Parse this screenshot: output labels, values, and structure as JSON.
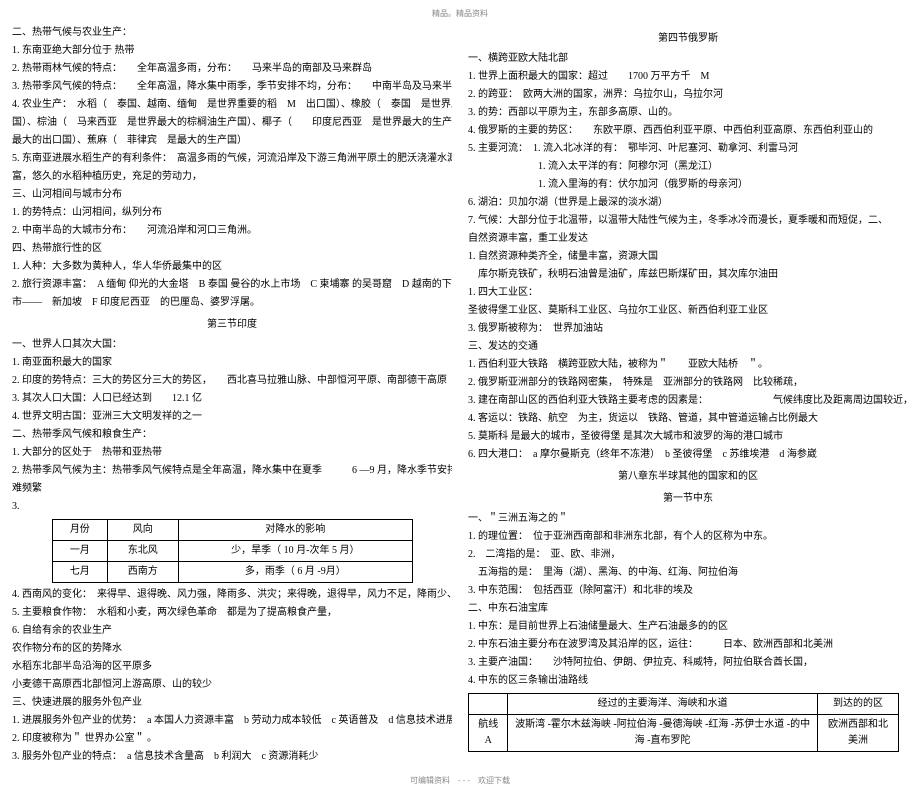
{
  "header": "精品。精品资料",
  "footer": "可编辑资料　- - -　欢迎下载",
  "left": {
    "s2_head": "二、热带气候与农业生产：",
    "s2_l1": "1. 东南亚绝大部分位于 热带",
    "s2_l2": "2. 热带雨林气候的特点：　　全年高温多雨，分布：　　马来半岛的南部及马来群岛",
    "s2_l3": "3. 热带季风气候的特点：　　全年高温，降水集中雨季，季节安排不均，分布：　　中南半岛及马来半岛北部",
    "s2_l4": "4. 农业生产：　水稻（　泰国、越南、缅甸　是世界重要的稻　M　出口国）、橡胶（　泰国　是世界上最大的橡胶生产",
    "s2_l4b": "国）、棕油（　马来西亚　是世界最大的棕榈油生产国）、椰子（　　印度尼西亚　是世界最大的生产国，菲律宾　是",
    "s2_l4c": "最大的出口国）、蕉麻（　菲律宾　是最大的生产国）",
    "s2_l5": "5. 东南亚进展水稻生产的有利条件：　高温多雨的气候，河流沿岸及下游三角洲平原土的肥沃浇灌水源丰",
    "s2_l5b": "富，悠久的水稻种植历史，充足的劳动力，",
    "s3_head": "三、山河相间与城市分布",
    "s3_l1": "1. 的势特点：山河相间，纵列分布",
    "s3_l2": "2. 中南半岛的大城市分布：　　河流沿岸和河口三角洲。",
    "s4_head": "四、热带旅行性的区",
    "s4_l1": "1. 人种：大多数为黄种人，华人华侨最集中的区",
    "s4_l2": "2. 旅行资源丰富：　A 缅甸 仰光的大金塔　B 泰国 曼谷的水上市场　C 柬埔寨 的吴哥窟　D 越南的下龙湾　E 花园城",
    "s4_l2b": "市——　新加坡　F 印度尼西亚　的巴厘岛、婆罗浮屠。",
    "sec3_title": "第三节印度",
    "p1_head": "一、世界人口其次大国：",
    "p1_l1": "1. 南亚面积最大的国家",
    "p1_l2": "2. 印度的势特点：三大的势区分三大的势区，　　西北喜马拉雅山脉、中部恒河平原、南部德干高原",
    "p1_l3": "3. 其次人口大国：人口已经达到　　12.1 亿",
    "p1_l4": "4. 世界文明古国：亚洲三大文明发祥的之一",
    "p2_head": "二、热带季风气候和粮食生产：",
    "p2_l1": "1. 大部分的区处于　热带和亚热带",
    "p2_l2": "2. 热带季风气候为主：热带季风气候特点是全年高温，降水集中在夏季　　　6 —9 月，降水季节安排不均，旱涝灾",
    "p2_l2b": "难频繁",
    "p2_l3": "3.",
    "tbl1": {
      "cols": [
        "月份",
        "风向",
        "对降水的影响"
      ],
      "rows": [
        [
          "一月",
          "东北风",
          "少，旱季（ 10 月-次年 5 月）"
        ],
        [
          "七月",
          "西南方",
          "多，雨季（ 6 月 -9月）"
        ]
      ]
    },
    "p2_l4": "4. 西南风的变化：　来得早、退得晚、风力强，降雨多、洪灾；来得晚，退得早，风力不足，降雨少、旱灾",
    "p2_l5": "5. 主要粮食作物：　水稻和小麦，两次绿色革命　都是为了提高粮食产量，",
    "p2_l6": "6. 自给有余的农业生产",
    "p2_l6b": "农作物分布的区的势降水",
    "p2_l6c": "水稻东北部半岛沿海的区平原多",
    "p2_l6d": "小麦德干高原西北部恒河上游高原、山的较少",
    "p3_head": "三、快速进展的服务外包产业",
    "p3_l1": "1. 进展服务外包产业的优势：　a 本国人力资源丰富　b 劳动力成本较低　c 英语普及　d 信息技术进展较早",
    "p3_l2": "2. 印度被称为＂ 世界办公室＂ 。",
    "p3_l3": "3. 服务外包产业的特点：　a 信息技术含量高　b 利润大　c 资源消耗少"
  },
  "right": {
    "sec4_title": "第四节俄罗斯",
    "r1_head": "一、横跨亚欧大陆北部",
    "r1_l1": "1. 世界上面积最大的国家：超过　　1700 万平方千　M",
    "r1_l2": "2. 的跨亚：　欧两大洲的国家，洲界：乌拉尔山，乌拉尔河",
    "r1_l3": "3. 的势：西部以平原为主，东部多高原、山的。",
    "r1_l4": "4. 俄罗斯的主要的势区：　　东欧平原、西西伯利亚平原、中西伯利亚高原、东西伯利亚山的",
    "r1_l5": "5. 主要河流：　1. 流入北冰洋的有：　鄂毕河、叶尼塞河、勒拿河、利雷马河",
    "r1_l5b": "　　　　　　　1. 流入太平洋的有：阿穆尔河（黑龙江）",
    "r1_l5c": "　　　　　　　1. 流入里海的有：伏尔加河（俄罗斯的母亲河）",
    "r1_l6": "6. 湖泊：贝加尔湖（世界是上最深的淡水湖）",
    "r1_l7": "7. 气候：大部分位于北温带，以温带大陆性气候为主，冬季冰冷而漫长，夏季暖和而短促，二、",
    "r1_l7b": "自然资源丰富，重工业发达",
    "r1_l8a": "1. 自然资源种类齐全，储量丰富，资源大国",
    "r1_l8b": "　库尔斯克铁矿，秋明石油曾是油矿，库兹巴斯煤矿田，其次库尔油田",
    "r1_l9": "1. 四大工业区：",
    "r1_l9b": "圣彼得堡工业区、莫斯科工业区、乌拉尔工业区、新西伯利亚工业区",
    "r1_l10": "3. 俄罗斯被称为：　世界加油站",
    "r3_head": "三、发达的交通",
    "r3_l1": "1. 西伯利亚大铁路　横跨亚欧大陆，被称为＂　　亚欧大陆桥　＂。",
    "r3_l2": "2. 俄罗斯亚洲部分的铁路网密集，　特殊是　亚洲部分的铁路网　比较稀疏，",
    "r3_l3": "3. 建在南部山区的西伯利亚大铁路主要考虑的因素是：　　　　　　　气候纬度比及距离周边国较近，更便于进展经济",
    "r3_l4": "4. 客运以：铁路、航空　为主，货运以　铁路、管道，其中管道运输占比例最大",
    "r3_l5": "5. 莫斯科 是最大的城市，圣彼得堡 是其次大城市和波罗的海的港口城市",
    "r3_l6": "6. 四大港口：　a 摩尔曼斯克（终年不冻港）　b 圣彼得堡　c 苏维埃港　d 海参崴",
    "sec8_title": "第八章东半球其他的国家和的区",
    "sec8_sub": "第一节中东",
    "m1_head": "一、＂三洲五海之的＂",
    "m1_l1": "1. 的理位置：　位于亚洲西南部和非洲东北部，有个人的区称为中东。",
    "m1_l2": "2.　二湾指的是：　亚、欧、非洲，",
    "m1_l2b": "　五海指的是：　里海（湖）、黑海、的中海、红海、阿拉伯海",
    "m1_l3": "3. 中东范围：　包括西亚（除阿富汗）和北非的埃及",
    "m2_head": "二、中东石油宝库",
    "m2_l1": "1. 中东：是目前世界上石油储量最大、生产石油最多的的区",
    "m2_l2": "2. 中东石油主要分布在波罗湾及其沿岸的区，运往：　　　日本、欧洲西部和北美洲",
    "m2_l3": "3. 主要产油国：　　沙特阿拉伯、伊朗、伊拉克、科威特，阿拉伯联合酋长国，",
    "m2_l4": "4. 中东的区三条输出油路线",
    "tbl2": {
      "cols": [
        "",
        "经过的主要海洋、海峡和水道",
        "到达的的区"
      ],
      "rows": [
        [
          "航线 A",
          "波斯湾 -霍尔木兹海峡 -阿拉伯海 -曼德海峡 -红海 -苏伊士水道 -的中海 -直布罗陀",
          "欧洲西部和北美洲"
        ]
      ]
    }
  }
}
